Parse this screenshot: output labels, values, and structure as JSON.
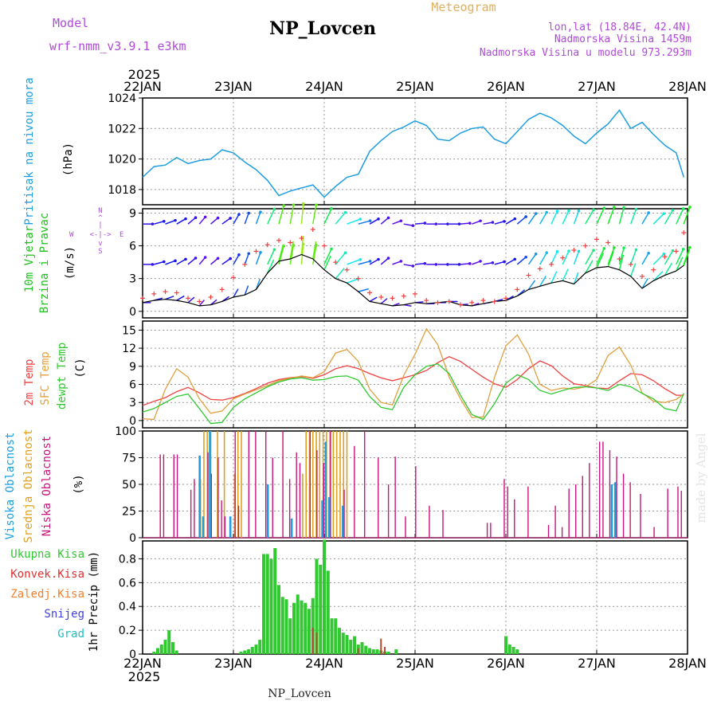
{
  "header": {
    "model_label": "Model",
    "model_name": "wrf-nmm_v3.9.1 e3km",
    "station": "NP_Lovcen",
    "meteogram": "Meteogram",
    "lonlat": "lon,lat (18.84E, 42.4N)",
    "altitude": "Nadmorska Visina 1459m",
    "altitude_model": "Nadmorska Visina u modelu 973.293m",
    "watermark": "made by Angel",
    "footer_station": "NP_Lovcen"
  },
  "colors": {
    "purple": "#b04ad8",
    "gold": "#e0b060",
    "pressure": "#1e9ee0",
    "temp2m": "#f04040",
    "sfc": "#e0a040",
    "dew": "#30c830",
    "cloud_high": "#1e9ee0",
    "cloud_mid": "#e0a020",
    "cloud_low": "#c8147a",
    "precip_total": "#32c832",
    "precip_conv": "#e03030",
    "precip_frozen": "#f08030",
    "precip_snow": "#4040e0",
    "precip_grad": "#20c0c0",
    "wind_green": "#20c020"
  },
  "time_axis": {
    "top_year": "2025",
    "bottom_year": "2025",
    "labels": [
      "22JAN",
      "23JAN",
      "24JAN",
      "25JAN",
      "26JAN",
      "27JAN",
      "28JAN"
    ],
    "hours_total": 144
  },
  "chart_data": [
    {
      "type": "line",
      "name": "pressure",
      "title": "Pritisak na nivou mora",
      "ylabel": "(hPa)",
      "ylim": [
        1017,
        1024
      ],
      "yticks": [
        "1018",
        "1020",
        "1022",
        "1024"
      ],
      "x": [
        0,
        3,
        6,
        9,
        12,
        15,
        18,
        21,
        24,
        27,
        30,
        33,
        36,
        39,
        42,
        45,
        48,
        51,
        54,
        57,
        60,
        63,
        66,
        69,
        72,
        75,
        78,
        81,
        84,
        87,
        90,
        93,
        96,
        99,
        102,
        105,
        108,
        111,
        114,
        117,
        120,
        123,
        126,
        129,
        132,
        135,
        138,
        141,
        143
      ],
      "values": [
        1018.8,
        1019.5,
        1019.6,
        1020.1,
        1019.7,
        1019.9,
        1020.0,
        1020.6,
        1020.4,
        1019.8,
        1019.3,
        1018.6,
        1017.6,
        1017.9,
        1018.1,
        1018.3,
        1017.5,
        1018.2,
        1018.8,
        1019.0,
        1020.5,
        1021.2,
        1021.8,
        1022.1,
        1022.5,
        1022.2,
        1021.3,
        1021.2,
        1021.7,
        1022.0,
        1022.1,
        1021.3,
        1021.0,
        1021.8,
        1022.6,
        1023.0,
        1022.7,
        1022.2,
        1021.5,
        1021.0,
        1021.7,
        1022.3,
        1023.2,
        1022.0,
        1022.4,
        1021.6,
        1020.9,
        1020.4,
        1018.8
      ]
    },
    {
      "type": "line",
      "name": "wind",
      "title": "10m Vjetar",
      "title2": "Brzina i Pravac",
      "ylabel": "(m/s)",
      "ylim": [
        -0.6,
        9.4
      ],
      "yticks": [
        "0",
        "3",
        "6",
        "9"
      ],
      "legend_n": "N",
      "legend_arrow_up": "^",
      "legend_pipe": "|",
      "legend_arrow_down": "v",
      "legend_s": "S",
      "legend_w": "W",
      "legend_e": "E",
      "legend_mid": "<-|->",
      "x": [
        0,
        3,
        6,
        9,
        12,
        15,
        18,
        21,
        24,
        27,
        30,
        33,
        36,
        39,
        42,
        45,
        48,
        51,
        54,
        57,
        60,
        63,
        66,
        69,
        72,
        75,
        78,
        81,
        84,
        87,
        90,
        93,
        96,
        99,
        102,
        105,
        108,
        111,
        114,
        117,
        120,
        123,
        126,
        129,
        132,
        135,
        138,
        141,
        143
      ],
      "speed": [
        0.8,
        1.0,
        1.1,
        1.0,
        0.8,
        0.5,
        0.6,
        0.9,
        1.3,
        1.5,
        2.0,
        3.5,
        4.6,
        4.8,
        5.2,
        4.8,
        3.8,
        3.0,
        2.6,
        1.8,
        0.9,
        0.7,
        0.5,
        0.6,
        0.8,
        0.7,
        0.8,
        0.9,
        0.6,
        0.5,
        0.7,
        0.9,
        1.0,
        1.4,
        2.0,
        2.3,
        2.6,
        2.8,
        2.5,
        3.5,
        4.0,
        4.1,
        3.8,
        3.2,
        2.1,
        2.8,
        3.3,
        3.7,
        4.2
      ],
      "gust": [
        1.2,
        1.6,
        1.8,
        1.7,
        1.2,
        0.9,
        1.3,
        2.0,
        3.1,
        4.3,
        5.5,
        6.1,
        6.5,
        6.3,
        6.7,
        7.5,
        6.0,
        4.5,
        3.8,
        3.0,
        1.7,
        1.3,
        1.2,
        1.4,
        1.6,
        1.0,
        0.8,
        0.9,
        0.6,
        0.8,
        1.0,
        0.9,
        1.2,
        2.0,
        3.3,
        3.9,
        4.3,
        4.9,
        5.6,
        6.0,
        6.6,
        6.3,
        4.8,
        4.3,
        3.2,
        3.8,
        5.0,
        5.5,
        7.2
      ],
      "dir": [
        270,
        255,
        250,
        240,
        230,
        220,
        230,
        235,
        210,
        200,
        200,
        205,
        195,
        190,
        185,
        190,
        205,
        220,
        250,
        255,
        240,
        230,
        250,
        280,
        265,
        270,
        270,
        270,
        265,
        250,
        260,
        255,
        240,
        230,
        215,
        210,
        205,
        205,
        200,
        210,
        205,
        200,
        195,
        200,
        210,
        225,
        210,
        205,
        200
      ]
    },
    {
      "type": "line",
      "name": "temperature",
      "title": "2m Temp",
      "title2": "SFC Temp",
      "title3": "dewpt Temp",
      "ylabel": "(C)",
      "ylim": [
        -1.2,
        16.5
      ],
      "yticks": [
        "0",
        "3",
        "6",
        "9",
        "12",
        "15"
      ],
      "x": [
        0,
        3,
        6,
        9,
        12,
        15,
        18,
        21,
        24,
        27,
        30,
        33,
        36,
        39,
        42,
        45,
        48,
        51,
        54,
        57,
        60,
        63,
        66,
        69,
        72,
        75,
        78,
        81,
        84,
        87,
        90,
        93,
        96,
        99,
        102,
        105,
        108,
        111,
        114,
        117,
        120,
        123,
        126,
        129,
        132,
        135,
        138,
        141,
        143
      ],
      "series": [
        {
          "name": "2m Temp",
          "values": [
            2.5,
            3.2,
            3.8,
            4.8,
            5.5,
            4.6,
            3.5,
            3.4,
            3.8,
            4.5,
            5.3,
            6.2,
            6.8,
            7.1,
            7.3,
            7.0,
            7.6,
            8.6,
            9.1,
            8.6,
            7.8,
            7.1,
            6.6,
            7.1,
            7.6,
            8.3,
            9.6,
            10.6,
            9.8,
            8.5,
            7.2,
            6.1,
            5.5,
            6.8,
            8.6,
            9.9,
            9.1,
            7.4,
            6.1,
            5.8,
            5.4,
            5.3,
            6.6,
            7.8,
            7.6,
            6.6,
            5.3,
            4.2,
            4.2
          ]
        },
        {
          "name": "SFC Temp",
          "values": [
            0.3,
            0.2,
            5.2,
            8.6,
            7.2,
            3.6,
            1.2,
            1.6,
            3.6,
            4.4,
            5.1,
            5.8,
            6.6,
            7.0,
            7.4,
            7.1,
            8.1,
            11.2,
            11.8,
            9.8,
            5.2,
            3.0,
            2.6,
            7.5,
            11.0,
            15.2,
            12.6,
            7.2,
            3.6,
            0.5,
            0.6,
            7.2,
            12.4,
            14.2,
            11.0,
            6.0,
            5.0,
            5.4,
            5.2,
            5.6,
            6.8,
            10.8,
            12.2,
            9.2,
            4.6,
            3.2,
            3.0,
            3.5,
            4.4
          ]
        },
        {
          "name": "dewpt Temp",
          "values": [
            1.4,
            2.0,
            3.0,
            4.0,
            4.4,
            2.0,
            -0.5,
            -0.3,
            2.2,
            3.6,
            4.6,
            5.6,
            6.4,
            6.9,
            7.1,
            6.7,
            6.8,
            7.3,
            7.4,
            6.7,
            4.0,
            2.2,
            1.8,
            5.5,
            7.6,
            9.0,
            9.4,
            7.8,
            4.2,
            1.0,
            0.2,
            2.8,
            6.2,
            7.6,
            6.8,
            5.0,
            4.4,
            5.0,
            5.5,
            5.6,
            5.4,
            5.0,
            6.0,
            5.6,
            4.5,
            3.6,
            2.0,
            1.6,
            4.5
          ]
        }
      ]
    },
    {
      "type": "bar",
      "name": "clouds",
      "title": "Visoka Oblacnost",
      "title2": "Srednja Oblacnost",
      "title3": "Niska Oblacnost",
      "ylabel": "(%)",
      "ylim": [
        0,
        100
      ],
      "yticks": [
        "0",
        "25",
        "50",
        "75",
        "100"
      ],
      "low": [
        [
          5,
          78
        ],
        [
          6,
          78
        ],
        [
          9,
          78
        ],
        [
          10,
          78
        ],
        [
          14,
          45
        ],
        [
          15,
          55
        ],
        [
          19,
          80
        ],
        [
          20,
          60
        ],
        [
          22,
          75
        ],
        [
          23,
          35
        ],
        [
          24,
          20
        ],
        [
          27,
          100
        ],
        [
          28,
          30
        ],
        [
          31,
          100
        ],
        [
          33,
          100
        ],
        [
          36,
          100
        ],
        [
          38,
          75
        ],
        [
          41,
          100
        ],
        [
          43,
          55
        ],
        [
          45,
          80
        ],
        [
          46,
          70
        ],
        [
          49,
          100
        ],
        [
          51,
          82
        ],
        [
          53,
          70
        ],
        [
          55,
          100
        ],
        [
          59,
          45
        ],
        [
          62,
          86
        ],
        [
          65,
          100
        ],
        [
          69,
          75
        ],
        [
          72,
          50
        ],
        [
          74,
          76
        ],
        [
          77,
          20
        ],
        [
          80,
          67
        ],
        [
          84,
          30
        ],
        [
          88,
          26
        ],
        [
          101,
          14
        ],
        [
          102,
          14
        ],
        [
          106,
          55
        ],
        [
          107,
          48
        ],
        [
          109,
          36
        ],
        [
          113,
          48
        ],
        [
          119,
          12
        ],
        [
          121,
          30
        ],
        [
          123,
          10
        ],
        [
          125,
          46
        ],
        [
          127,
          50
        ],
        [
          129,
          58
        ],
        [
          131,
          70
        ],
        [
          134,
          90
        ],
        [
          135,
          90
        ],
        [
          137,
          82
        ],
        [
          139,
          76
        ],
        [
          141,
          60
        ],
        [
          143,
          52
        ],
        [
          146,
          41
        ],
        [
          150,
          10
        ],
        [
          154,
          46
        ],
        [
          157,
          48
        ],
        [
          158,
          44
        ]
      ],
      "mid": [
        [
          17,
          55
        ],
        [
          18,
          100
        ],
        [
          19,
          100
        ],
        [
          20,
          100
        ],
        [
          22,
          100
        ],
        [
          24,
          100
        ],
        [
          27,
          60
        ],
        [
          28,
          100
        ],
        [
          29,
          100
        ],
        [
          47,
          60
        ],
        [
          48,
          100
        ],
        [
          49,
          100
        ],
        [
          50,
          100
        ],
        [
          51,
          100
        ],
        [
          52,
          100
        ],
        [
          53,
          100
        ],
        [
          54,
          100
        ],
        [
          55,
          100
        ],
        [
          56,
          100
        ],
        [
          57,
          100
        ],
        [
          58,
          100
        ],
        [
          59,
          100
        ],
        [
          60,
          100
        ]
      ],
      "high": [
        [
          17,
          77
        ],
        [
          18,
          20
        ],
        [
          20,
          100
        ],
        [
          26,
          20
        ],
        [
          37,
          50
        ],
        [
          44,
          18
        ],
        [
          53,
          35
        ],
        [
          54,
          90
        ],
        [
          55,
          38
        ],
        [
          59,
          30
        ],
        [
          138,
          50
        ],
        [
          139,
          52
        ]
      ]
    },
    {
      "type": "bar",
      "name": "precipitation",
      "title": "Ukupna Kisa",
      "title2": "Konvek.Kisa",
      "title3": "Zaledj.Kisa",
      "title4": "Snijeg",
      "title5": "Grad",
      "ylabel": "1hr Precip (mm)",
      "ylim": [
        0,
        0.95
      ],
      "yticks": [
        "0",
        "0.2",
        "0.4",
        "0.6",
        "0.8"
      ],
      "total": [
        [
          3,
          0.02
        ],
        [
          4,
          0.05
        ],
        [
          5,
          0.08
        ],
        [
          6,
          0.12
        ],
        [
          7,
          0.2
        ],
        [
          8,
          0.1
        ],
        [
          9,
          0.03
        ],
        [
          26,
          0.02
        ],
        [
          27,
          0.03
        ],
        [
          28,
          0.04
        ],
        [
          29,
          0.06
        ],
        [
          30,
          0.08
        ],
        [
          31,
          0.12
        ],
        [
          32,
          0.84
        ],
        [
          33,
          0.84
        ],
        [
          34,
          0.8
        ],
        [
          35,
          0.89
        ],
        [
          36,
          0.58
        ],
        [
          37,
          0.48
        ],
        [
          38,
          0.46
        ],
        [
          39,
          0.3
        ],
        [
          40,
          0.43
        ],
        [
          41,
          0.5
        ],
        [
          42,
          0.45
        ],
        [
          43,
          0.43
        ],
        [
          44,
          0.38
        ],
        [
          45,
          0.47
        ],
        [
          46,
          0.8
        ],
        [
          47,
          0.75
        ],
        [
          48,
          0.96
        ],
        [
          49,
          0.7
        ],
        [
          50,
          0.3
        ],
        [
          51,
          0.3
        ],
        [
          52,
          0.22
        ],
        [
          53,
          0.18
        ],
        [
          54,
          0.16
        ],
        [
          55,
          0.12
        ],
        [
          56,
          0.15
        ],
        [
          57,
          0.08
        ],
        [
          58,
          0.1
        ],
        [
          59,
          0.07
        ],
        [
          60,
          0.05
        ],
        [
          61,
          0.04
        ],
        [
          62,
          0.04
        ],
        [
          63,
          0.03
        ],
        [
          64,
          0.02
        ],
        [
          65,
          0.02
        ],
        [
          67,
          0.04
        ],
        [
          96,
          0.15
        ],
        [
          97,
          0.08
        ],
        [
          98,
          0.06
        ],
        [
          99,
          0.04
        ]
      ],
      "conv": [
        [
          45,
          0.22
        ],
        [
          46,
          0.18
        ],
        [
          57,
          0.05
        ],
        [
          63,
          0.13
        ],
        [
          64,
          0.06
        ]
      ]
    }
  ]
}
